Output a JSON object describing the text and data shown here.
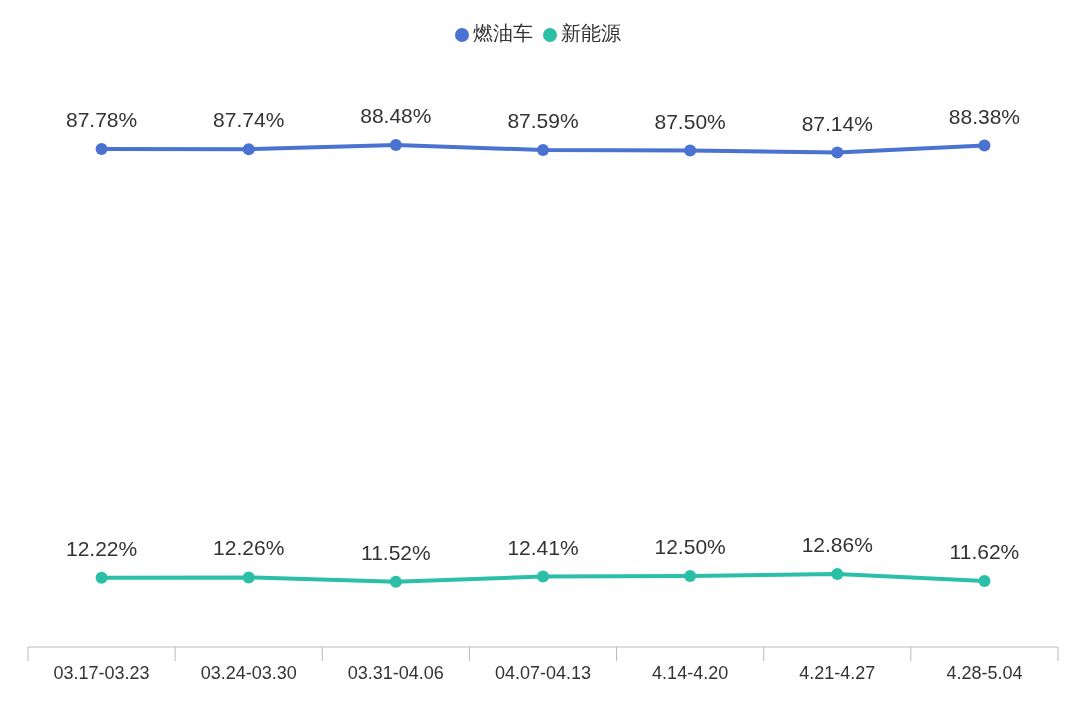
{
  "chart_data": {
    "type": "line",
    "categories": [
      "03.17-03.23",
      "03.24-03.30",
      "03.31-04.06",
      "04.07-04.13",
      "4.14-4.20",
      "4.21-4.27",
      "4.28-5.04"
    ],
    "series": [
      {
        "name": "燃油车",
        "color": "#4a72d0",
        "values": [
          87.78,
          87.74,
          88.48,
          87.59,
          87.5,
          87.14,
          88.38
        ],
        "value_labels": [
          "87.78%",
          "87.74%",
          "88.48%",
          "87.59%",
          "87.50%",
          "87.14%",
          "88.38%"
        ]
      },
      {
        "name": "新能源",
        "color": "#2bbfa8",
        "values": [
          12.22,
          12.26,
          11.52,
          12.41,
          12.5,
          12.86,
          11.62
        ],
        "value_labels": [
          "12.22%",
          "12.26%",
          "11.52%",
          "12.41%",
          "12.50%",
          "12.86%",
          "11.62%"
        ]
      }
    ],
    "legend": "top",
    "marker": "circle",
    "line_style": "solid",
    "grid": false
  }
}
